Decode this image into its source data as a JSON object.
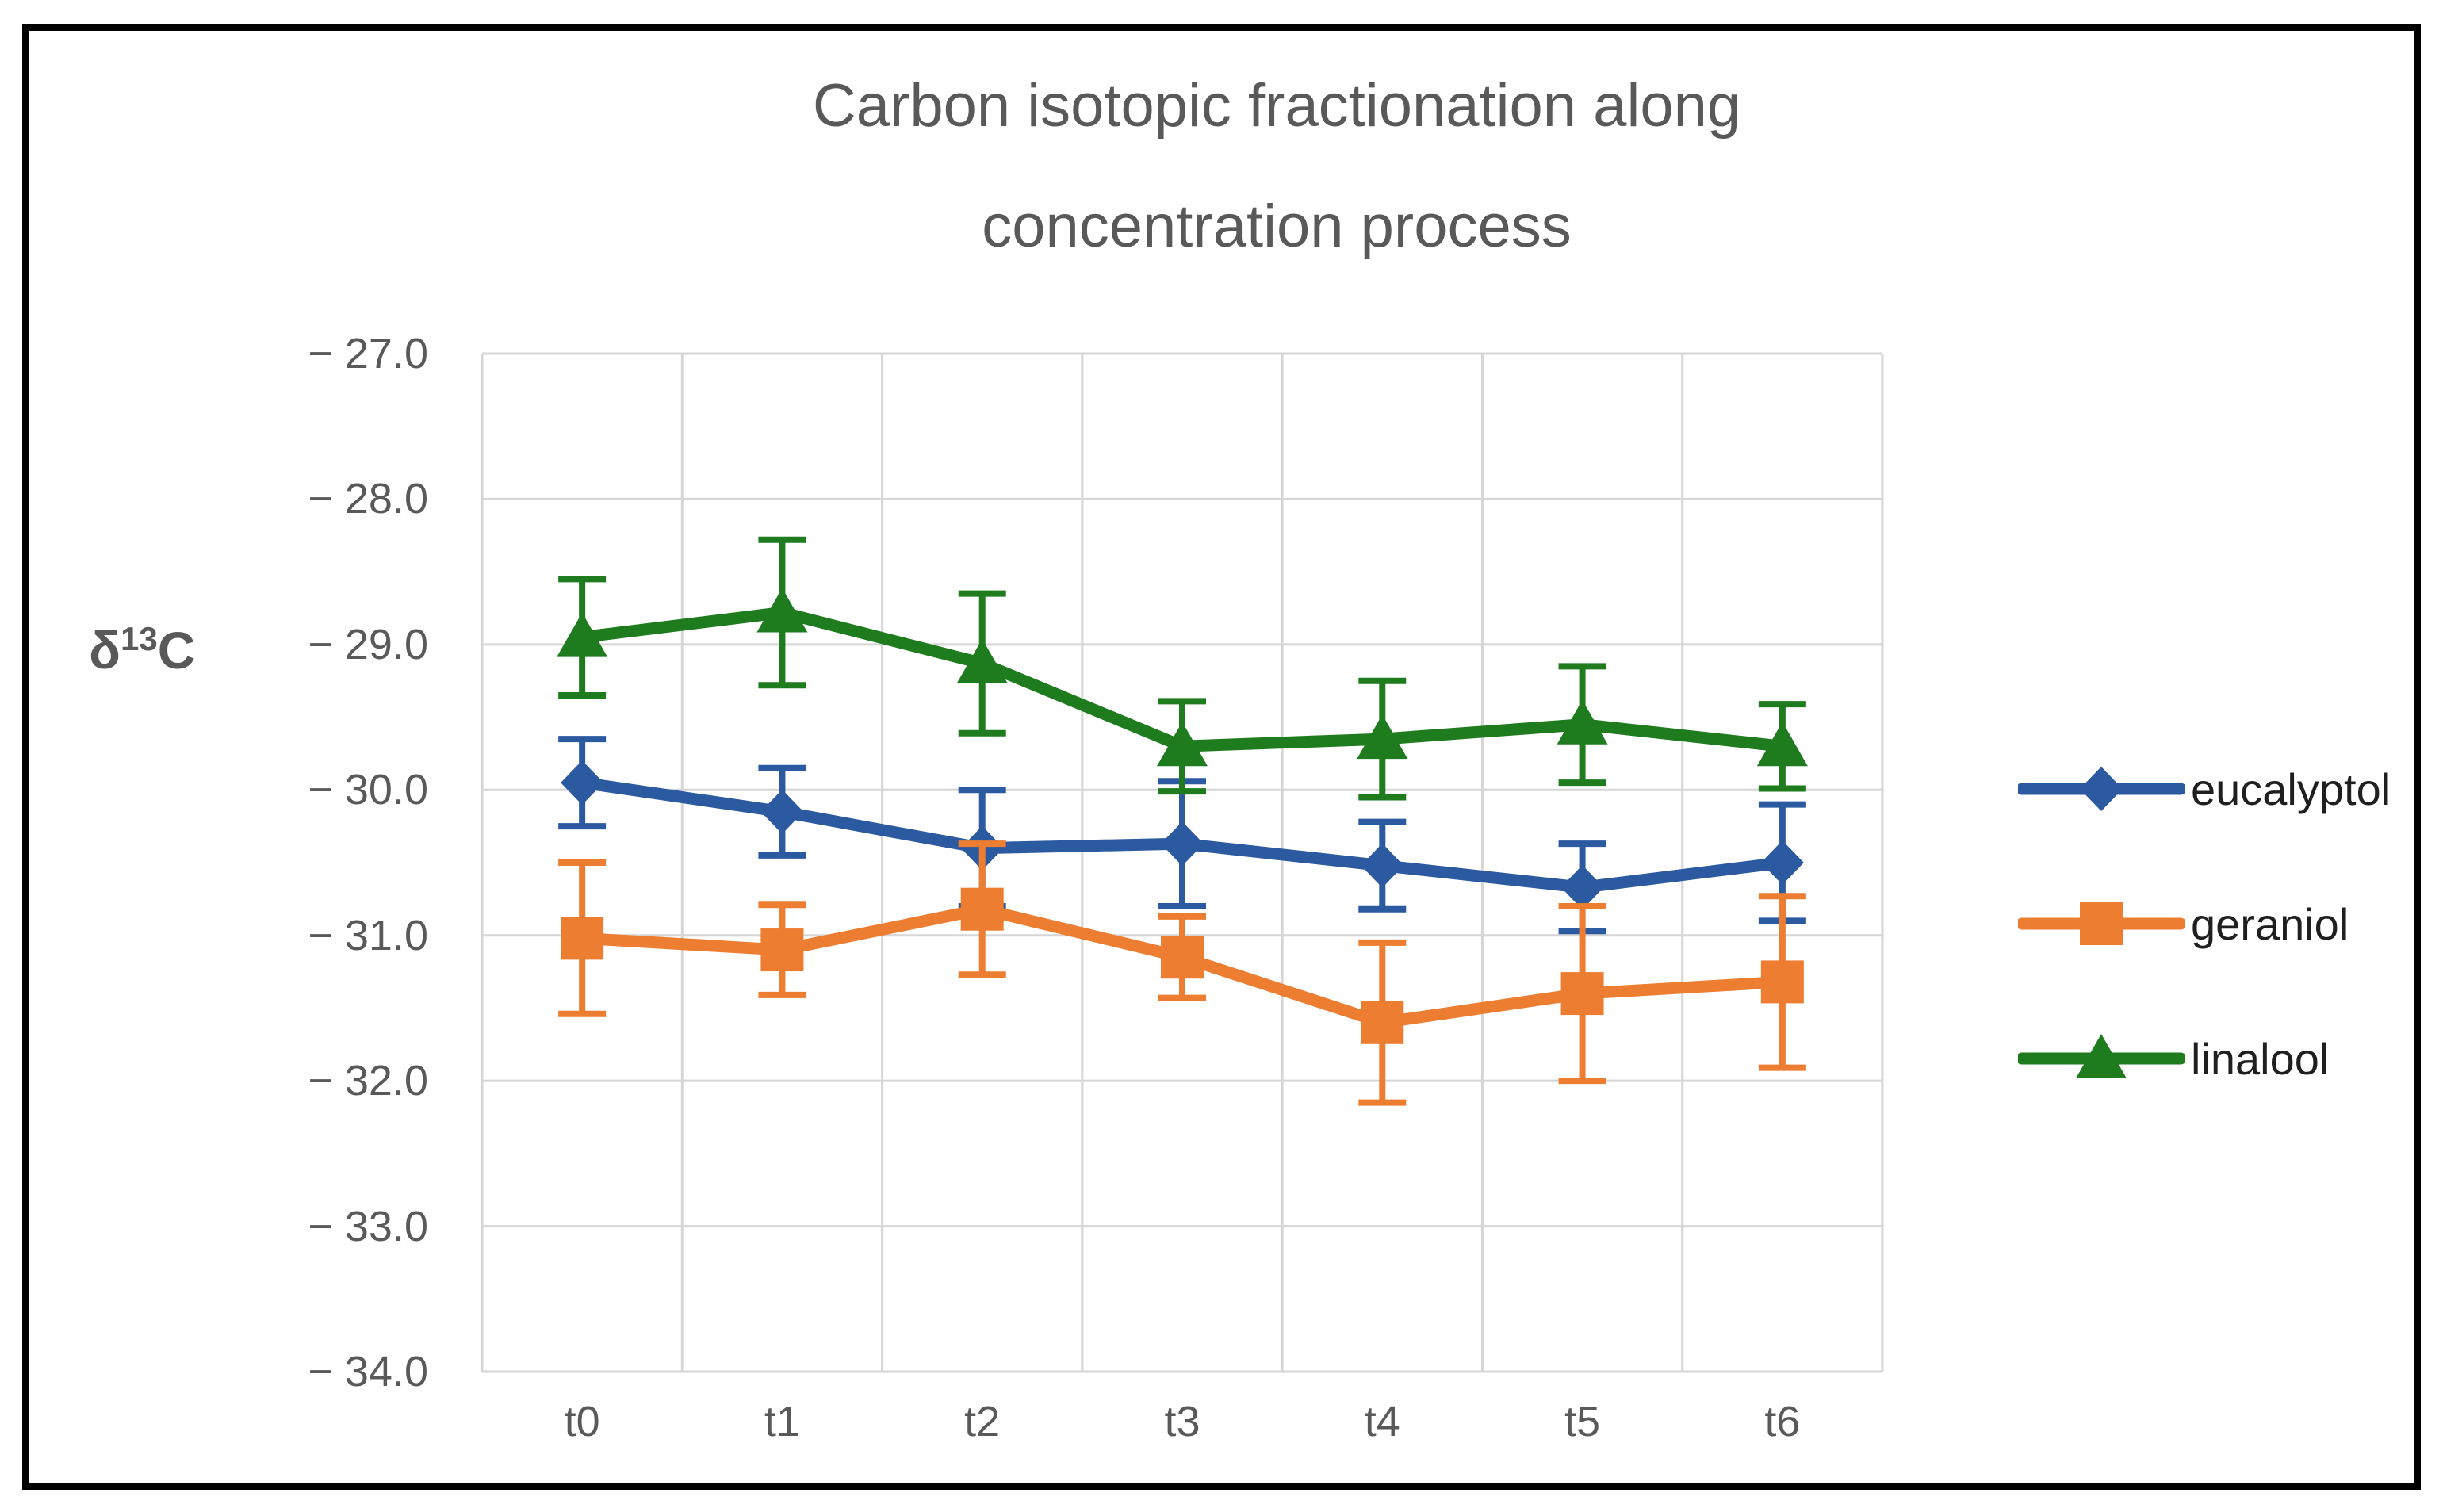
{
  "figure": {
    "background": "#FFFFFF",
    "frame_color": "#000000"
  },
  "title": {
    "line1": "Carbon isotopic fractionation along",
    "line2": "concentration process",
    "color": "#595959"
  },
  "y_axis": {
    "title_base": "δ",
    "title_sup": "13",
    "title_end": "C",
    "color": "#595959",
    "ticks": [
      "− 27.0",
      "− 28.0",
      "− 29.0",
      "− 30.0",
      "− 31.0",
      "− 32.0",
      "− 33.0",
      "− 34.0"
    ]
  },
  "x_axis": {
    "color": "#595959"
  },
  "legend": {
    "text_color": "#1F1F1F",
    "position": "right"
  },
  "chart_data": {
    "type": "line",
    "title": "Carbon isotopic fractionation along concentration process",
    "ylabel": "δ13C",
    "xlabel": "",
    "categories": [
      "t0",
      "t1",
      "t2",
      "t3",
      "t4",
      "t5",
      "t6"
    ],
    "ylim": [
      -34.0,
      -27.0
    ],
    "y_ticks": [
      -27.0,
      -28.0,
      -29.0,
      -30.0,
      -31.0,
      -32.0,
      -33.0,
      -34.0
    ],
    "grid": true,
    "grid_color": "#D6D6D6",
    "legend_position": "right",
    "error_bars": true,
    "series": [
      {
        "name": "eucalyptol",
        "color": "#2C5AA0",
        "marker": "diamond",
        "values": [
          -29.95,
          -30.15,
          -30.4,
          -30.37,
          -30.52,
          -30.67,
          -30.5
        ],
        "errors": [
          0.3,
          0.3,
          0.4,
          0.43,
          0.3,
          0.3,
          0.4
        ]
      },
      {
        "name": "geraniol",
        "color": "#ED7D31",
        "marker": "square",
        "values": [
          -31.02,
          -31.1,
          -30.82,
          -31.15,
          -31.6,
          -31.4,
          -31.32
        ],
        "errors": [
          0.52,
          0.31,
          0.45,
          0.28,
          0.55,
          0.6,
          0.59
        ]
      },
      {
        "name": "linalool",
        "color": "#1E7C1E",
        "marker": "triangle",
        "values": [
          -28.95,
          -28.78,
          -29.13,
          -29.7,
          -29.65,
          -29.55,
          -29.7
        ],
        "errors": [
          0.4,
          0.5,
          0.48,
          0.31,
          0.4,
          0.4,
          0.29
        ]
      }
    ]
  }
}
